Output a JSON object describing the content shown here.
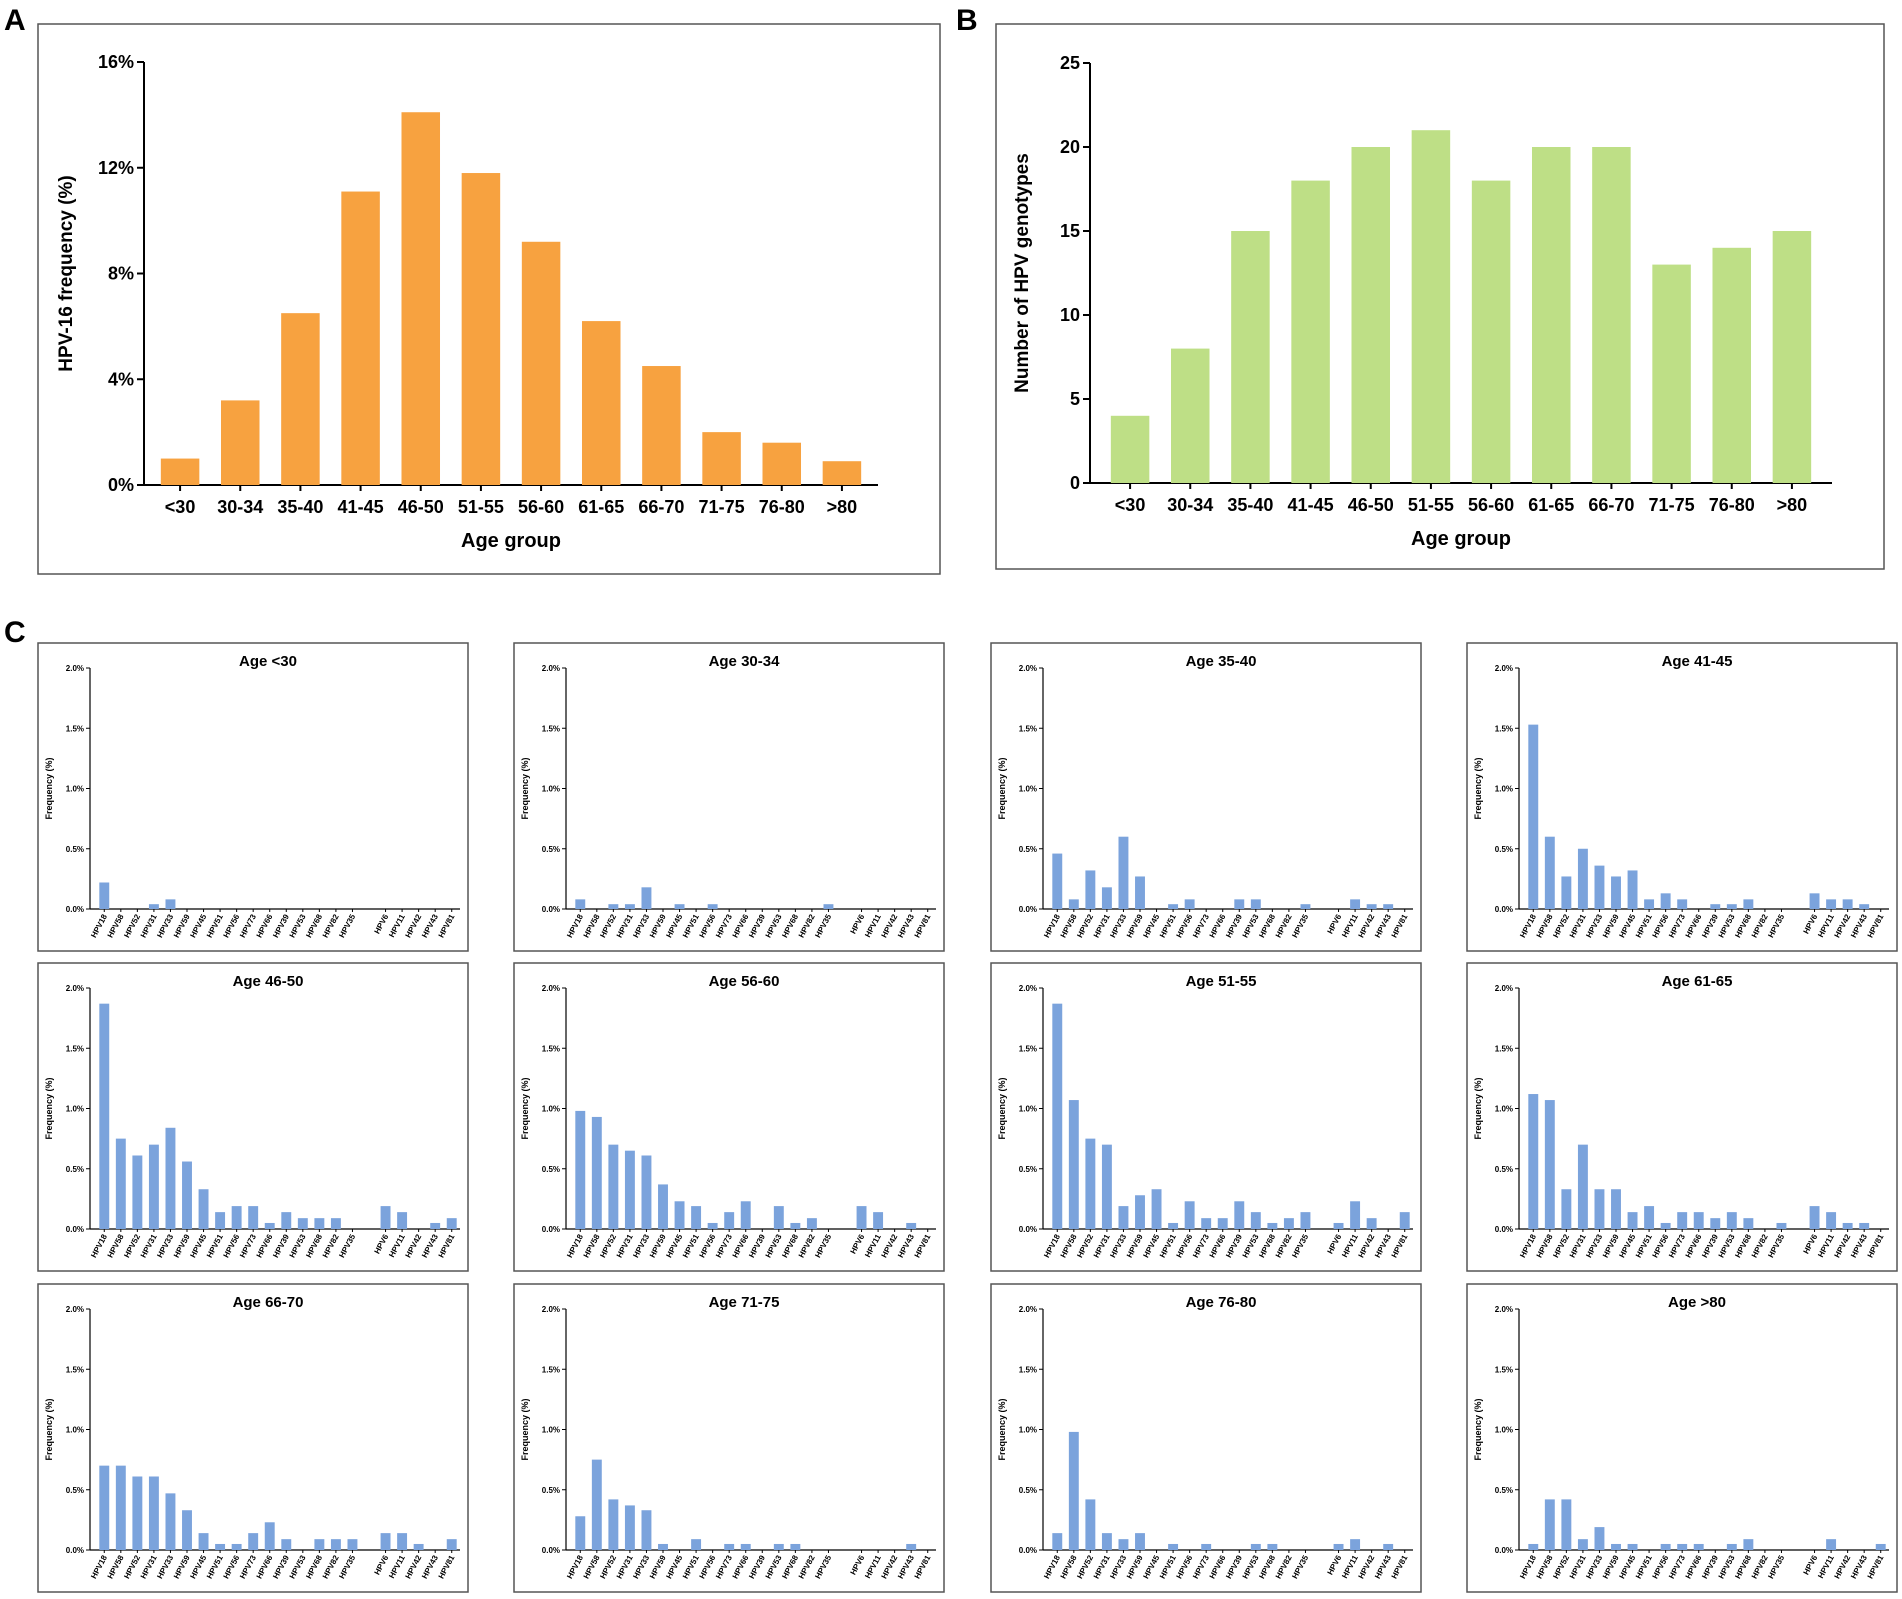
{
  "panels": {
    "a": "A",
    "b": "B",
    "c": "C"
  },
  "colors": {
    "orange": "#F7A240",
    "green": "#BEDF86",
    "blue": "#7BA3DC",
    "frame": "#555555",
    "axis": "#000000"
  },
  "chart_data": [
    {
      "id": "A",
      "type": "bar",
      "categories": [
        "<30",
        "30-34",
        "35-40",
        "41-45",
        "46-50",
        "51-55",
        "56-60",
        "61-65",
        "66-70",
        "71-75",
        "76-80",
        ">80"
      ],
      "values": [
        1.0,
        3.2,
        6.5,
        11.1,
        14.1,
        11.8,
        9.2,
        6.2,
        4.5,
        2.0,
        1.6,
        0.9
      ],
      "title": "",
      "xlabel": "Age group",
      "ylabel": "HPV-16 frequency (%)",
      "ylim": [
        0,
        16
      ],
      "yticks": [
        "0%",
        "4%",
        "8%",
        "12%",
        "16%"
      ],
      "ytick_values": [
        0,
        4,
        8,
        12,
        16
      ]
    },
    {
      "id": "B",
      "type": "bar",
      "categories": [
        "<30",
        "30-34",
        "35-40",
        "41-45",
        "46-50",
        "51-55",
        "56-60",
        "61-65",
        "66-70",
        "71-75",
        "76-80",
        ">80"
      ],
      "values": [
        4,
        8,
        15,
        18,
        20,
        21,
        18,
        20,
        20,
        13,
        14,
        15
      ],
      "title": "",
      "xlabel": "Age group",
      "ylabel": "Number of HPV genotypes",
      "ylim": [
        0,
        25
      ],
      "yticks": [
        "0",
        "5",
        "10",
        "15",
        "20",
        "25"
      ],
      "ytick_values": [
        0,
        5,
        10,
        15,
        20,
        25
      ]
    },
    {
      "id": "C",
      "type": "bar",
      "genotypes": [
        "HPV18",
        "HPV58",
        "HPV52",
        "HPV31",
        "HPV33",
        "HPV59",
        "HPV45",
        "HPV51",
        "HPV56",
        "HPV73",
        "HPV66",
        "HPV39",
        "HPV53",
        "HPV68",
        "HPV82",
        "HPV35",
        "",
        "HPV6",
        "HPV11",
        "HPV42",
        "HPV43",
        "HPV81"
      ],
      "ylabel": "Frequency (%)",
      "ylim": [
        0,
        2.0
      ],
      "yticks": [
        "0.0%",
        "0.5%",
        "1.0%",
        "1.5%",
        "2.0%"
      ],
      "ytick_values": [
        0,
        0.5,
        1.0,
        1.5,
        2.0
      ],
      "subplots": [
        {
          "title": "Age <30",
          "values": [
            0.22,
            0,
            0,
            0.04,
            0.08,
            0,
            0,
            0,
            0,
            0,
            0,
            0,
            0,
            0,
            0,
            0,
            0,
            0,
            0,
            0,
            0,
            0
          ]
        },
        {
          "title": "Age 30-34",
          "values": [
            0.08,
            0,
            0.04,
            0.04,
            0.18,
            0,
            0.04,
            0,
            0.04,
            0,
            0,
            0,
            0,
            0,
            0,
            0.04,
            0,
            0,
            0,
            0,
            0,
            0
          ]
        },
        {
          "title": "Age 35-40",
          "values": [
            0.46,
            0.08,
            0.32,
            0.18,
            0.6,
            0.27,
            0,
            0.04,
            0.08,
            0,
            0,
            0.08,
            0.08,
            0,
            0,
            0.04,
            0,
            0,
            0.08,
            0.04,
            0.04,
            0
          ]
        },
        {
          "title": "Age 41-45",
          "values": [
            1.53,
            0.6,
            0.27,
            0.5,
            0.36,
            0.27,
            0.32,
            0.08,
            0.13,
            0.08,
            0,
            0.04,
            0.04,
            0.08,
            0,
            0,
            0,
            0.13,
            0.08,
            0.08,
            0.04,
            0
          ]
        },
        {
          "title": "Age 46-50",
          "values": [
            1.87,
            0.75,
            0.61,
            0.7,
            0.84,
            0.56,
            0.33,
            0.14,
            0.19,
            0.19,
            0.05,
            0.14,
            0.09,
            0.09,
            0.09,
            0,
            0,
            0.19,
            0.14,
            0,
            0.05,
            0.09
          ]
        },
        {
          "title": "Age 56-60",
          "values": [
            0.98,
            0.93,
            0.7,
            0.65,
            0.61,
            0.37,
            0.23,
            0.19,
            0.05,
            0.14,
            0.23,
            0,
            0.19,
            0.05,
            0.09,
            0,
            0,
            0.19,
            0.14,
            0,
            0.05,
            0
          ]
        },
        {
          "title": "Age 51-55",
          "values": [
            1.87,
            1.07,
            0.75,
            0.7,
            0.19,
            0.28,
            0.33,
            0.05,
            0.23,
            0.09,
            0.09,
            0.23,
            0.14,
            0.05,
            0.09,
            0.14,
            0,
            0.05,
            0.23,
            0.09,
            0,
            0.14
          ]
        },
        {
          "title": "Age 61-65",
          "values": [
            1.12,
            1.07,
            0.33,
            0.7,
            0.33,
            0.33,
            0.14,
            0.19,
            0.05,
            0.14,
            0.14,
            0.09,
            0.14,
            0.09,
            0,
            0.05,
            0,
            0.19,
            0.14,
            0.05,
            0.05,
            0
          ]
        },
        {
          "title": "Age 66-70",
          "values": [
            0.7,
            0.7,
            0.61,
            0.61,
            0.47,
            0.33,
            0.14,
            0.05,
            0.05,
            0.14,
            0.23,
            0.09,
            0,
            0.09,
            0.09,
            0.09,
            0,
            0.14,
            0.14,
            0.05,
            0,
            0.09
          ]
        },
        {
          "title": "Age 71-75",
          "values": [
            0.28,
            0.75,
            0.42,
            0.37,
            0.33,
            0.05,
            0,
            0.09,
            0,
            0.05,
            0.05,
            0,
            0.05,
            0.05,
            0,
            0,
            0,
            0,
            0,
            0,
            0.05,
            0
          ]
        },
        {
          "title": "Age 76-80",
          "values": [
            0.14,
            0.98,
            0.42,
            0.14,
            0.09,
            0.14,
            0,
            0.05,
            0,
            0.05,
            0,
            0,
            0.05,
            0.05,
            0,
            0,
            0,
            0.05,
            0.09,
            0,
            0.05,
            0
          ]
        },
        {
          "title": "Age >80",
          "values": [
            0.05,
            0.42,
            0.42,
            0.09,
            0.19,
            0.05,
            0.05,
            0,
            0.05,
            0.05,
            0.05,
            0,
            0.05,
            0.09,
            0,
            0,
            0,
            0,
            0.09,
            0,
            0,
            0.05
          ]
        }
      ]
    }
  ]
}
